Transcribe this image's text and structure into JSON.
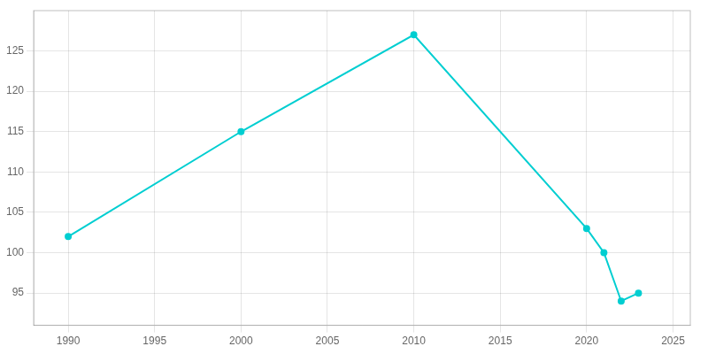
{
  "chart_data": {
    "type": "line",
    "x": [
      1990,
      2000,
      2010,
      2020,
      2021,
      2022,
      2023
    ],
    "values": [
      102,
      115,
      127,
      103,
      100,
      94,
      95
    ],
    "color": "#00CED1",
    "marker": "circle",
    "xlim": [
      1988,
      2026
    ],
    "xticks": [
      1990,
      1995,
      2000,
      2005,
      2010,
      2015,
      2020,
      2025
    ],
    "ylim": [
      91,
      130
    ],
    "yticks": [
      95,
      100,
      105,
      110,
      115,
      120,
      125
    ],
    "grid": true
  }
}
